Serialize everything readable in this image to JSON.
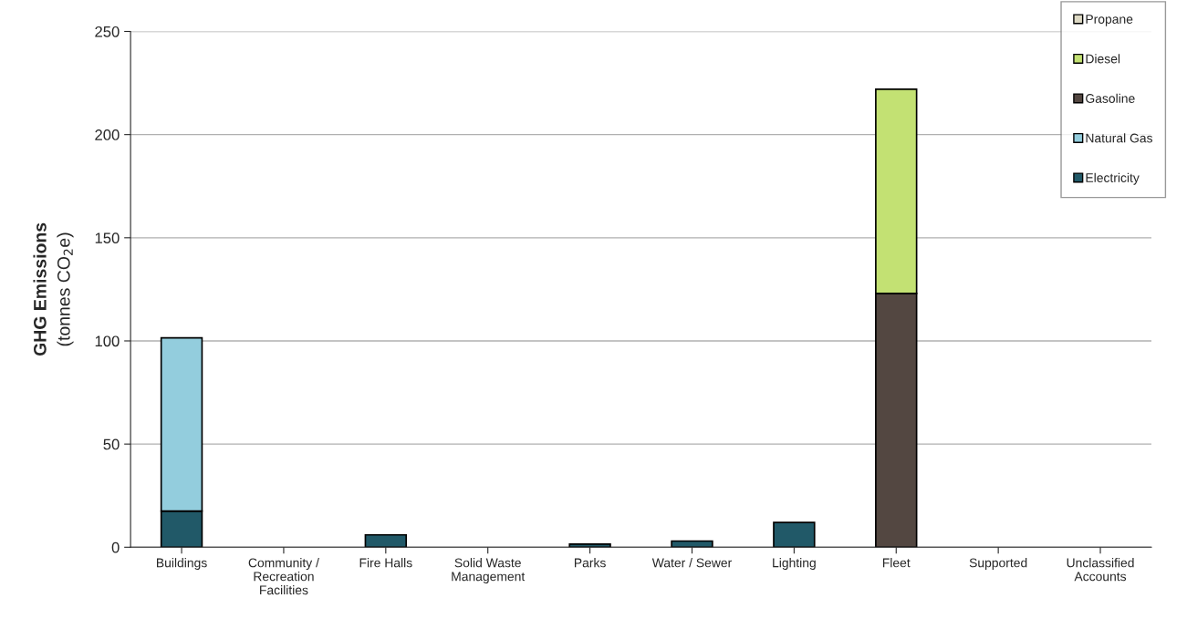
{
  "chart_data": {
    "type": "bar",
    "stacked": true,
    "ylabel": "GHG Emissions\n(tonnes CO$_{2}$e)",
    "categories": [
      "Buildings",
      "Community /\nRecreation\nFacilities",
      "Fire Halls",
      "Solid Waste\nManagement",
      "Parks",
      "Water / Sewer",
      "Lighting",
      "Fleet",
      "Supported",
      "Unclassified\nAccounts"
    ],
    "series": [
      {
        "name": "Electricity",
        "color": "#215968",
        "values": [
          17.5,
          0,
          6,
          0,
          1.5,
          3,
          12,
          0,
          0,
          0
        ]
      },
      {
        "name": "Natural Gas",
        "color": "#93cddd",
        "values": [
          84,
          0,
          0,
          0,
          0,
          0,
          0,
          0,
          0,
          0
        ]
      },
      {
        "name": "Gasoline",
        "color": "#534741",
        "values": [
          0,
          0,
          0,
          0,
          0,
          0,
          0,
          123,
          0,
          0
        ]
      },
      {
        "name": "Diesel",
        "color": "#c3e173",
        "values": [
          0,
          0,
          0,
          0,
          0,
          0,
          0,
          99,
          0,
          0
        ]
      },
      {
        "name": "Propane",
        "color": "#ddd9c4",
        "values": [
          0,
          0,
          0,
          0,
          0,
          0,
          0,
          0,
          0,
          0
        ]
      }
    ],
    "ylim": [
      0,
      250
    ],
    "yticks": [
      0,
      50,
      100,
      150,
      200,
      250
    ],
    "grid": "y",
    "legend": "top right"
  }
}
